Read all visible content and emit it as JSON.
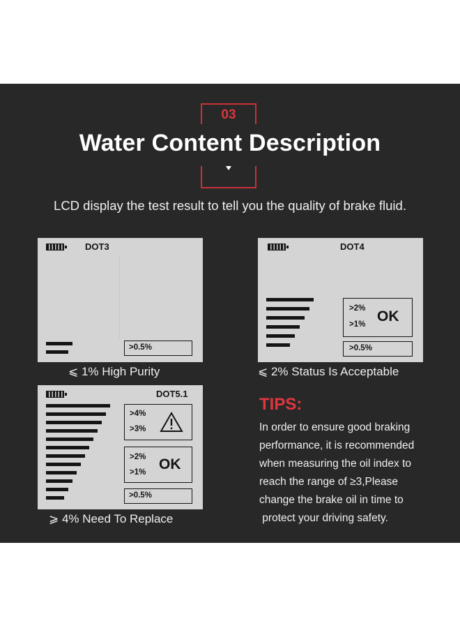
{
  "header": {
    "section_number": "03",
    "title": "Water Content Description",
    "subtitle": "LCD display the test result to tell you the quality of brake fluid."
  },
  "displays": [
    {
      "label": "DOT3",
      "readings": [
        ">0.5%"
      ],
      "bars_count": 2,
      "caption": "⩽ 1% High Purity"
    },
    {
      "label": "DOT4",
      "readings": [
        ">2%",
        ">1%",
        ">0.5%"
      ],
      "status": "OK",
      "bars_count": 6,
      "caption": "⩽ 2% Status Is Acceptable"
    },
    {
      "label": "DOT5.1",
      "readings": [
        ">4%",
        ">3%",
        ">2%",
        ">1%",
        ">0.5%"
      ],
      "status": "OK",
      "warning_icon": "warning-triangle-icon",
      "bars_count": 12,
      "caption": "⩾ 4% Need To Replace"
    }
  ],
  "tips": {
    "title": "TIPS:",
    "lines": [
      "In order to ensure good braking",
      "performance, it is recommended",
      "when measuring the oil index to",
      "reach the range of ≥3,Please",
      "change the brake oil in time to",
      " protect your driving safety."
    ]
  },
  "colors": {
    "accent": "#d8363e",
    "panel": "#282828",
    "lcd": "#d4d4d4"
  }
}
